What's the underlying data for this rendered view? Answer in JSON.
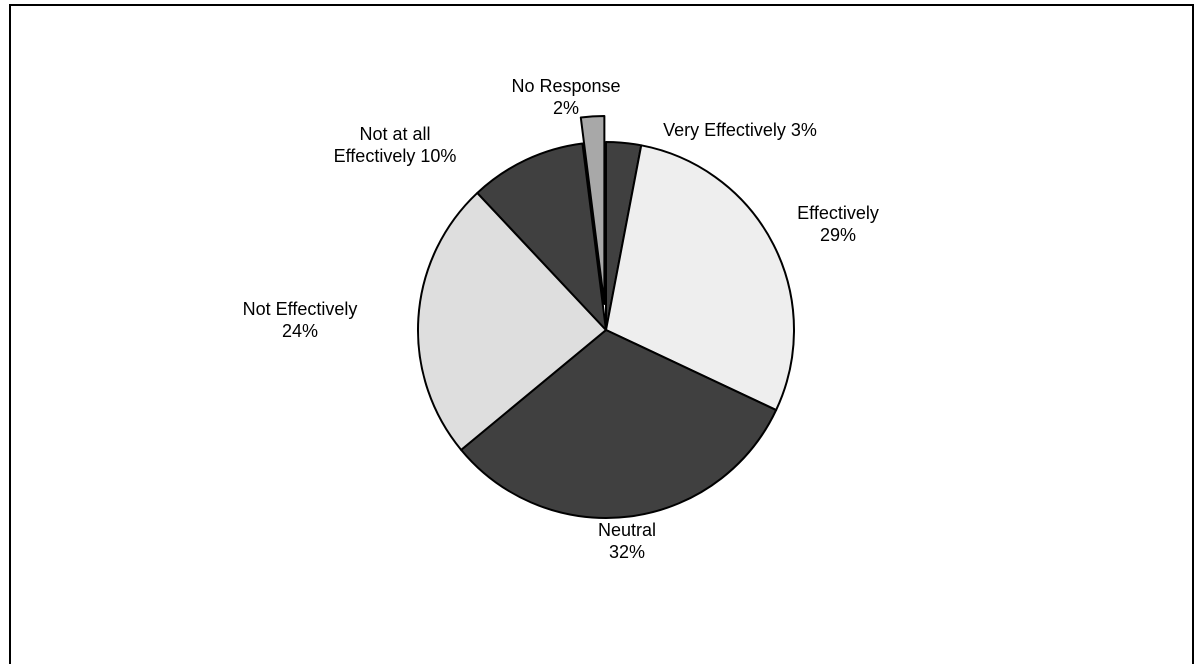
{
  "chart_data": {
    "type": "pie",
    "title": "",
    "slices": [
      {
        "label_lines": [
          "Very Effectively 3%"
        ],
        "value": 3,
        "color": "#404040",
        "exploded": false
      },
      {
        "label_lines": [
          "Effectively",
          "29%"
        ],
        "value": 29,
        "color": "#eeeeee",
        "exploded": false
      },
      {
        "label_lines": [
          "Neutral",
          "32%"
        ],
        "value": 32,
        "color": "#404040",
        "exploded": false
      },
      {
        "label_lines": [
          "Not Effectively",
          "24%"
        ],
        "value": 24,
        "color": "#dedede",
        "exploded": false
      },
      {
        "label_lines": [
          "Not at all",
          "Effectively 10%"
        ],
        "value": 10,
        "color": "#404040",
        "exploded": false
      },
      {
        "label_lines": [
          "No Response",
          "2%"
        ],
        "value": 2,
        "color": "#a8a8a8",
        "exploded": true
      }
    ]
  }
}
